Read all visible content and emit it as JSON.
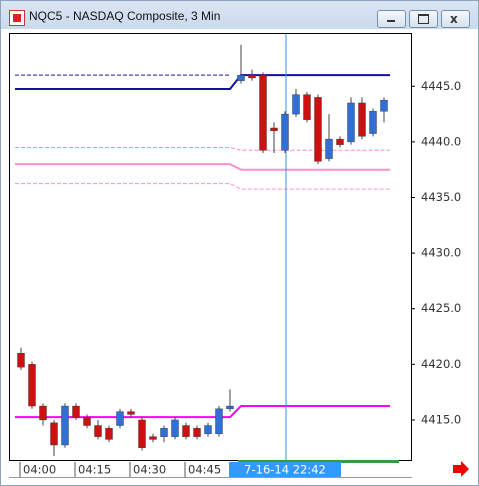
{
  "chart_data": {
    "type": "candlestick",
    "title": "NQC5 - NASDAQ Composite, 3 Min",
    "categories": [
      "04:00",
      null,
      null,
      null,
      null,
      "04:15",
      null,
      null,
      null,
      null,
      "04:30",
      null,
      null,
      null,
      null,
      "04:45",
      null,
      null,
      null,
      null,
      null,
      null,
      null,
      null,
      "7-16-14 22:42",
      null,
      null,
      null,
      null,
      null,
      null,
      null,
      null,
      null
    ],
    "cursor": 24,
    "open": [
      4421.0,
      4420.0,
      4416.25,
      4414.75,
      4412.75,
      4416.25,
      4415.25,
      4414.5,
      4414.25,
      4414.5,
      4415.75,
      4415.0,
      4413.5,
      4413.5,
      4413.5,
      4414.5,
      4414.25,
      4413.75,
      4413.75,
      4416.0,
      4445.5,
      4446.0,
      4446.0,
      4441.25,
      4439.25,
      4442.5,
      4444.25,
      4444.0,
      4438.5,
      4440.25,
      4440.0,
      4443.5,
      4440.75,
      4442.75
    ],
    "high": [
      4421.5,
      4420.25,
      4416.5,
      4415.0,
      4416.5,
      4416.5,
      4415.5,
      4415.0,
      4414.5,
      4416.0,
      4416.0,
      4415.25,
      4413.75,
      4414.5,
      4415.25,
      4414.75,
      4414.5,
      4414.75,
      4416.25,
      4417.75,
      4448.75,
      4446.5,
      4446.25,
      4441.75,
      4442.75,
      4444.75,
      4444.5,
      4444.25,
      4442.5,
      4440.5,
      4444.0,
      4444.0,
      4443.0,
      4444.0
    ],
    "low": [
      4419.5,
      4416.0,
      4414.5,
      4411.75,
      4412.5,
      4415.0,
      4414.25,
      4413.25,
      4413.0,
      4414.25,
      4415.25,
      4412.25,
      4413.0,
      4413.0,
      4413.25,
      4413.25,
      4413.25,
      4413.5,
      4413.5,
      4415.75,
      4445.25,
      4445.5,
      4439.0,
      4439.0,
      4439.0,
      4442.25,
      4441.75,
      4438.0,
      4438.25,
      4439.5,
      4439.75,
      4440.25,
      4440.5,
      4441.75
    ],
    "close": [
      4419.75,
      4416.25,
      4415.0,
      4412.75,
      4416.25,
      4415.25,
      4414.5,
      4413.5,
      4413.25,
      4415.75,
      4415.5,
      4412.5,
      4413.25,
      4414.25,
      4415.0,
      4413.5,
      4413.5,
      4414.5,
      4416.0,
      4416.25,
      4446.0,
      4445.75,
      4439.25,
      4441.0,
      4442.5,
      4444.25,
      4442.0,
      4438.25,
      4440.25,
      4439.75,
      4443.5,
      4440.5,
      4442.75,
      4443.75
    ],
    "up_color": "#2f6fd6",
    "down_color": "#cc1111",
    "levels": [
      {
        "color": "#1a1a9c",
        "dashed": true,
        "values": [
          4446.0,
          4446.0,
          4446.0,
          4446.0,
          4446.0,
          4446.0,
          4446.0,
          4446.0,
          4446.0,
          4446.0,
          4446.0,
          4446.0,
          4446.0,
          4446.0,
          4446.0,
          4446.0,
          4446.0,
          4446.0,
          4446.0,
          4446.0,
          null,
          null,
          null,
          null,
          null,
          null,
          null,
          null,
          null,
          null,
          null,
          null,
          null,
          null
        ]
      },
      {
        "color": "#10109a",
        "dashed": false,
        "values": [
          4444.75,
          4444.75,
          4444.75,
          4444.75,
          4444.75,
          4444.75,
          4444.75,
          4444.75,
          4444.75,
          4444.75,
          4444.75,
          4444.75,
          4444.75,
          4444.75,
          4444.75,
          4444.75,
          4444.75,
          4444.75,
          4444.75,
          4444.75,
          4446.0,
          4446.0,
          4446.0,
          4446.0,
          4446.0,
          4446.0,
          4446.0,
          4446.0,
          4446.0,
          4446.0,
          4446.0,
          4446.0,
          4446.0,
          4446.0
        ]
      },
      {
        "color": "#ff8fc8",
        "dashed": true,
        "values": [
          4439.5,
          4439.5,
          4439.5,
          4439.5,
          4439.5,
          4439.5,
          4439.5,
          4439.5,
          4439.5,
          4439.5,
          4439.5,
          4439.5,
          4439.5,
          4439.5,
          4439.5,
          4439.5,
          4439.5,
          4439.5,
          4439.5,
          4439.5,
          4439.25,
          4439.25,
          4439.25,
          4439.25,
          4439.25,
          4439.25,
          4439.25,
          4439.25,
          4439.25,
          4439.25,
          4439.25,
          4439.25,
          4439.25,
          4439.25
        ]
      },
      {
        "color": "#ff8fc8",
        "dashed": false,
        "values": [
          4438.0,
          4438.0,
          4438.0,
          4438.0,
          4438.0,
          4438.0,
          4438.0,
          4438.0,
          4438.0,
          4438.0,
          4438.0,
          4438.0,
          4438.0,
          4438.0,
          4438.0,
          4438.0,
          4438.0,
          4438.0,
          4438.0,
          4438.0,
          4437.5,
          4437.5,
          4437.5,
          4437.5,
          4437.5,
          4437.5,
          4437.5,
          4437.5,
          4437.5,
          4437.5,
          4437.5,
          4437.5,
          4437.5,
          4437.5
        ]
      },
      {
        "color": "#ff8fc8",
        "dashed": true,
        "values": [
          4436.25,
          4436.25,
          4436.25,
          4436.25,
          4436.25,
          4436.25,
          4436.25,
          4436.25,
          4436.25,
          4436.25,
          4436.25,
          4436.25,
          4436.25,
          4436.25,
          4436.25,
          4436.25,
          4436.25,
          4436.25,
          4436.25,
          4436.25,
          4435.75,
          4435.75,
          4435.75,
          4435.75,
          4435.75,
          4435.75,
          4435.75,
          4435.75,
          4435.75,
          4435.75,
          4435.75,
          4435.75,
          4435.75,
          4435.75
        ]
      },
      {
        "color": "#ff00ff",
        "dashed": false,
        "values": [
          4415.25,
          4415.25,
          4415.25,
          4415.25,
          4415.25,
          4415.25,
          4415.25,
          4415.25,
          4415.25,
          4415.25,
          4415.25,
          4415.25,
          4415.25,
          4415.25,
          4415.25,
          4415.25,
          4415.25,
          4415.25,
          4415.25,
          4415.25,
          4416.25,
          4416.25,
          4416.25,
          4416.25,
          4416.25,
          4416.25,
          4416.25,
          4416.25,
          4416.25,
          4416.25,
          4416.25,
          4416.25,
          4416.25,
          4416.25
        ]
      }
    ],
    "ylim": [
      4411.4,
      4449.7
    ],
    "yticks": [
      {
        "value": 4415,
        "label": "4415.0"
      },
      {
        "value": 4420,
        "label": "4420.0"
      },
      {
        "value": 4425,
        "label": "4425.0"
      },
      {
        "value": 4430,
        "label": "4430.0"
      },
      {
        "value": 4435,
        "label": "4435.0"
      },
      {
        "value": 4440,
        "label": "4440.0"
      },
      {
        "value": 4445,
        "label": "4445.0"
      }
    ],
    "y_axis_side": "right",
    "grid": false
  }
}
